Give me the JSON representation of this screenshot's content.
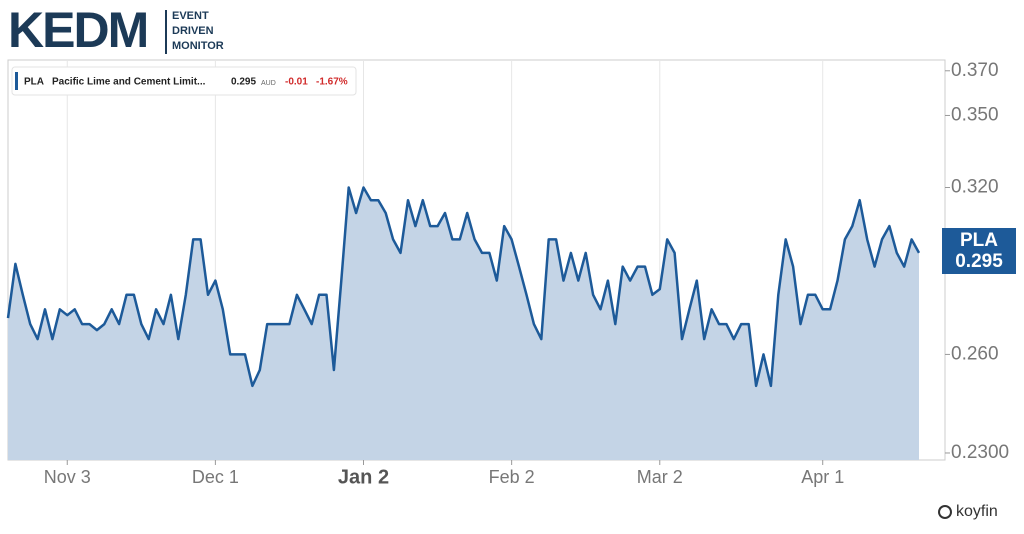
{
  "logo": {
    "name": "KEDM",
    "tagline": [
      "EVENT",
      "DRIVEN",
      "MONITOR"
    ]
  },
  "legend": {
    "full_name": "Pacific Lime and Cement Limit...",
    "price": "0.295",
    "currency": "AUD",
    "change": "-0.01",
    "change_pct": "-1.67%"
  },
  "price_tag": {
    "price": "0.295"
  },
  "watermark": "koyfin",
  "chart_data": {
    "type": "area",
    "categories": [
      null,
      null,
      null,
      null,
      null,
      null,
      null,
      null,
      "Nov 3",
      null,
      null,
      null,
      null,
      null,
      null,
      null,
      null,
      null,
      null,
      null,
      null,
      null,
      null,
      null,
      null,
      null,
      null,
      null,
      "Dec 1",
      null,
      null,
      null,
      null,
      null,
      null,
      null,
      null,
      null,
      null,
      null,
      null,
      null,
      null,
      null,
      null,
      null,
      null,
      null,
      "Jan 2",
      null,
      null,
      null,
      null,
      null,
      null,
      null,
      null,
      null,
      null,
      null,
      null,
      null,
      null,
      null,
      null,
      null,
      null,
      null,
      "Feb 2",
      null,
      null,
      null,
      null,
      null,
      null,
      null,
      null,
      null,
      null,
      null,
      null,
      null,
      null,
      null,
      null,
      null,
      null,
      null,
      "Mar 2",
      null,
      null,
      null,
      null,
      null,
      null,
      null,
      null,
      null,
      null,
      null,
      null,
      null,
      null,
      null,
      null,
      null,
      null,
      null,
      null,
      null,
      "Apr 1",
      null,
      null,
      null,
      null,
      null,
      null,
      null,
      null,
      null,
      null,
      null,
      null,
      null
    ],
    "highlight_categories": [
      48
    ],
    "series": [
      {
        "name": "PLA",
        "color": "#1d5a99",
        "fill": "#c4d4e6",
        "values": [
          0.272,
          0.291,
          0.28,
          0.27,
          0.265,
          0.275,
          0.265,
          0.275,
          0.273,
          0.275,
          0.27,
          0.27,
          0.268,
          0.27,
          0.275,
          0.27,
          0.28,
          0.28,
          0.27,
          0.265,
          0.275,
          0.27,
          0.28,
          0.265,
          0.28,
          0.3,
          0.3,
          0.28,
          0.285,
          0.275,
          0.26,
          0.26,
          0.26,
          0.25,
          0.255,
          0.27,
          0.27,
          0.27,
          0.27,
          0.28,
          0.275,
          0.27,
          0.28,
          0.28,
          0.255,
          0.285,
          0.32,
          0.31,
          0.32,
          0.315,
          0.315,
          0.31,
          0.3,
          0.295,
          0.315,
          0.305,
          0.315,
          0.305,
          0.305,
          0.31,
          0.3,
          0.3,
          0.31,
          0.3,
          0.295,
          0.295,
          0.285,
          0.305,
          0.3,
          0.29,
          0.28,
          0.27,
          0.265,
          0.3,
          0.3,
          0.285,
          0.295,
          0.285,
          0.295,
          0.28,
          0.275,
          0.285,
          0.27,
          0.29,
          0.285,
          0.29,
          0.29,
          0.28,
          0.282,
          0.3,
          0.295,
          0.265,
          0.275,
          0.285,
          0.265,
          0.275,
          0.27,
          0.27,
          0.265,
          0.27,
          0.27,
          0.25,
          0.26,
          0.25,
          0.28,
          0.3,
          0.29,
          0.27,
          0.28,
          0.28,
          0.275,
          0.275,
          0.285,
          0.3,
          0.305,
          0.315,
          0.3,
          0.29,
          0.3,
          0.305,
          0.295,
          0.29,
          0.3,
          0.295
        ]
      }
    ],
    "ylim": [
      0.228,
      0.375
    ],
    "log_scale": true,
    "yticks": [
      {
        "value": 0.23,
        "label": "0.2300"
      },
      {
        "value": 0.26,
        "label": "0.260"
      },
      {
        "value": 0.32,
        "label": "0.320"
      },
      {
        "value": 0.35,
        "label": "0.350"
      },
      {
        "value": 0.37,
        "label": "0.370"
      }
    ],
    "grid": true
  }
}
